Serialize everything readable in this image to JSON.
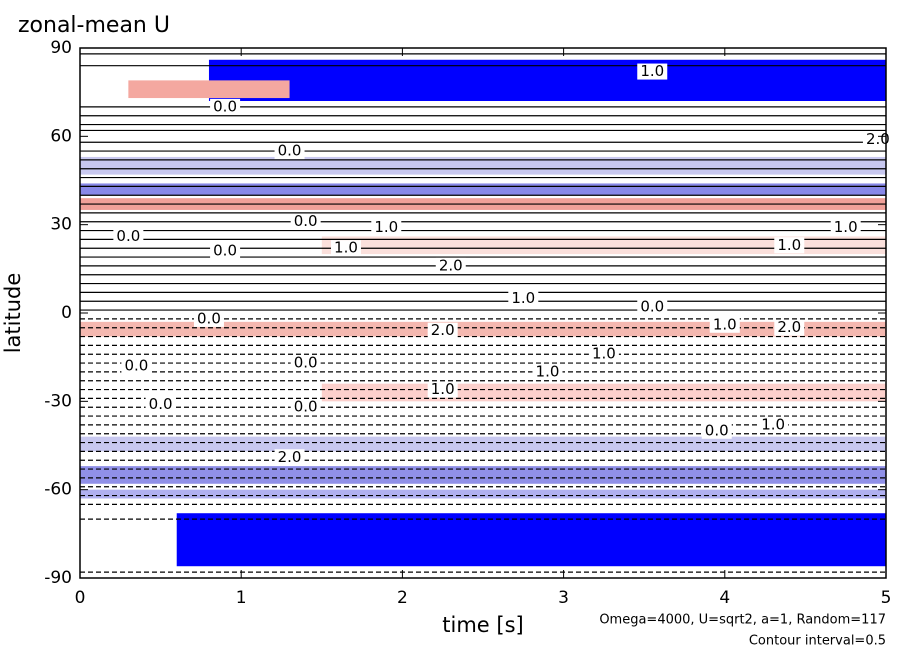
{
  "chart_data": {
    "type": "contour",
    "title": "zonal-mean U",
    "xlabel": "time [s]",
    "ylabel": "latitude",
    "notes": [
      "Omega=4000, U=sqrt2, a=1, Random=117",
      "Contour interval=0.5"
    ],
    "xlim": [
      0,
      5
    ],
    "ylim": [
      -90,
      90
    ],
    "xticks": [
      0,
      1,
      2,
      3,
      4,
      5
    ],
    "yticks": [
      -90,
      -60,
      -30,
      0,
      30,
      60,
      90
    ],
    "bands": [
      {
        "from": 72,
        "to": 86,
        "time": [
          0.8,
          5
        ],
        "color": "#0000ff"
      },
      {
        "from": -86,
        "to": -68,
        "time": [
          0.6,
          5
        ],
        "color": "#0000ff"
      },
      {
        "from": 73,
        "to": 79,
        "time": [
          0.3,
          1.3
        ],
        "color": "#f4a8a0"
      },
      {
        "from": 47,
        "to": 53,
        "time": [
          0,
          5
        ],
        "color": "#c8c8f0"
      },
      {
        "from": 40,
        "to": 44,
        "time": [
          0,
          5
        ],
        "color": "#8888e8"
      },
      {
        "from": 35,
        "to": 39,
        "time": [
          0,
          5
        ],
        "color": "#f0a098"
      },
      {
        "from": 20,
        "to": 26,
        "time": [
          1.5,
          5
        ],
        "color": "#fbe0dc"
      },
      {
        "from": -8,
        "to": -3,
        "time": [
          0,
          5
        ],
        "color": "#f4b8b0"
      },
      {
        "from": -30,
        "to": -24,
        "time": [
          1.5,
          5
        ],
        "color": "#fcd0cc"
      },
      {
        "from": -47,
        "to": -42,
        "time": [
          0,
          5
        ],
        "color": "#c8c8f0"
      },
      {
        "from": -58,
        "to": -52,
        "time": [
          0,
          5
        ],
        "color": "#9090e8"
      },
      {
        "from": -63,
        "to": -60,
        "time": [
          0,
          5
        ],
        "color": "#b0b0f0"
      }
    ],
    "contour_lines": [
      88,
      84,
      70,
      67,
      64,
      62,
      58,
      55,
      52,
      49,
      46,
      43,
      40,
      37,
      34,
      31,
      28,
      25,
      22,
      19,
      16,
      13,
      10,
      7,
      4,
      1,
      -2,
      -5,
      -8,
      -11,
      -14,
      -17,
      -20,
      -23,
      -26,
      -29,
      -32,
      -35,
      -38,
      -41,
      -44,
      -47,
      -50,
      -53,
      -56,
      -59,
      -62,
      -65,
      -70,
      -88
    ],
    "contour_labels": [
      {
        "time": 0.9,
        "lat": 70,
        "label": "0.0"
      },
      {
        "time": 1.3,
        "lat": 55,
        "label": "0.0"
      },
      {
        "time": 0.3,
        "lat": 26,
        "label": "0.0"
      },
      {
        "time": 0.9,
        "lat": 21,
        "label": "0.0"
      },
      {
        "time": 1.4,
        "lat": 31,
        "label": "0.0"
      },
      {
        "time": 1.9,
        "lat": 29,
        "label": "1.0"
      },
      {
        "time": 1.65,
        "lat": 22,
        "label": "1.0"
      },
      {
        "time": 2.3,
        "lat": 16,
        "label": "2.0"
      },
      {
        "time": 2.75,
        "lat": 5,
        "label": "1.0"
      },
      {
        "time": 2.25,
        "lat": -6,
        "label": "2.0"
      },
      {
        "time": 0.8,
        "lat": -2,
        "label": "0.0"
      },
      {
        "time": 0.35,
        "lat": -18,
        "label": "0.0"
      },
      {
        "time": 0.5,
        "lat": -31,
        "label": "0.0"
      },
      {
        "time": 1.4,
        "lat": -17,
        "label": "0.0"
      },
      {
        "time": 1.4,
        "lat": -32,
        "label": "0.0"
      },
      {
        "time": 2.25,
        "lat": -26,
        "label": "1.0"
      },
      {
        "time": 2.9,
        "lat": -20,
        "label": "1.0"
      },
      {
        "time": 3.25,
        "lat": -14,
        "label": "1.0"
      },
      {
        "time": 3.55,
        "lat": 2,
        "label": "0.0"
      },
      {
        "time": 4.0,
        "lat": -4,
        "label": "1.0"
      },
      {
        "time": 4.4,
        "lat": -5,
        "label": "2.0"
      },
      {
        "time": 4.4,
        "lat": 23,
        "label": "1.0"
      },
      {
        "time": 4.75,
        "lat": 29,
        "label": "1.0"
      },
      {
        "time": 3.55,
        "lat": 82,
        "label": "1.0"
      },
      {
        "time": 3.95,
        "lat": -40,
        "label": "0.0"
      },
      {
        "time": 4.3,
        "lat": -38,
        "label": "1.0"
      },
      {
        "time": 4.95,
        "lat": 59,
        "label": "2.0"
      },
      {
        "time": 1.3,
        "lat": -49,
        "label": "2.0"
      }
    ]
  }
}
